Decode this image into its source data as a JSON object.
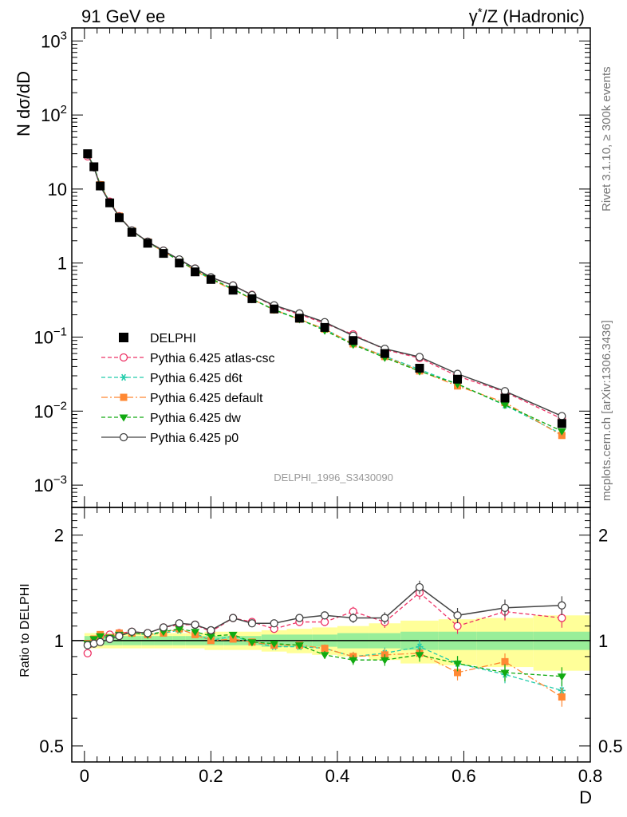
{
  "header": {
    "left": "91 GeV ee",
    "right_prefix": "γ",
    "right_sup": "*",
    "right_suffix": "/Z (Hadronic)"
  },
  "side_text": {
    "top": "Rivet 3.1.10, ≥ 300k events",
    "bottom": "mcplots.cern.ch [arXiv:1306.3436]"
  },
  "watermark": "DELPHI_1996_S3430090",
  "axes": {
    "xlabel": "D",
    "ylabel_main": "N dσ/dD",
    "ylabel_ratio": "Ratio to DELPHI",
    "x_ticks": [
      "0",
      "0.2",
      "0.4",
      "0.6",
      "0.8"
    ],
    "main_ticks": [
      {
        "base": "10",
        "exp": "3"
      },
      {
        "base": "10",
        "exp": "2"
      },
      {
        "base": "10",
        "exp": ""
      },
      {
        "base": "1",
        "exp": ""
      },
      {
        "base": "10",
        "exp": "−1"
      },
      {
        "base": "10",
        "exp": "−2"
      },
      {
        "base": "10",
        "exp": "−3"
      }
    ],
    "ratio_ticks": [
      "2",
      "1",
      "0.5"
    ]
  },
  "legend": [
    {
      "label": "DELPHI"
    },
    {
      "label": "Pythia 6.425 atlas-csc"
    },
    {
      "label": "Pythia 6.425 d6t"
    },
    {
      "label": "Pythia 6.425 default"
    },
    {
      "label": "Pythia 6.425 dw"
    },
    {
      "label": "Pythia 6.425 p0"
    }
  ],
  "chart_data": {
    "type": "line",
    "x_scale": "linear",
    "xlim": [
      -0.02,
      0.8
    ],
    "main": {
      "y_scale": "log",
      "ylim": [
        0.0005,
        1500
      ]
    },
    "ratio": {
      "y_scale": "log",
      "ylim": [
        0.45,
        2.4
      ]
    },
    "x": [
      0.005,
      0.015,
      0.025,
      0.04,
      0.055,
      0.075,
      0.1,
      0.125,
      0.15,
      0.175,
      0.2,
      0.235,
      0.265,
      0.3,
      0.34,
      0.38,
      0.425,
      0.475,
      0.53,
      0.59,
      0.665,
      0.755
    ],
    "x_edges": [
      0.0,
      0.01,
      0.02,
      0.03,
      0.05,
      0.06,
      0.09,
      0.11,
      0.14,
      0.16,
      0.19,
      0.22,
      0.25,
      0.28,
      0.32,
      0.36,
      0.4,
      0.45,
      0.5,
      0.56,
      0.62,
      0.71,
      0.8
    ],
    "band_inner": [
      0.03,
      0.03,
      0.03,
      0.03,
      0.03,
      0.03,
      0.03,
      0.03,
      0.03,
      0.03,
      0.03,
      0.03,
      0.03,
      0.04,
      0.04,
      0.04,
      0.05,
      0.05,
      0.06,
      0.06,
      0.06,
      0.06
    ],
    "band_outer": [
      0.05,
      0.05,
      0.05,
      0.05,
      0.05,
      0.05,
      0.05,
      0.05,
      0.05,
      0.05,
      0.06,
      0.06,
      0.06,
      0.07,
      0.08,
      0.09,
      0.1,
      0.12,
      0.14,
      0.15,
      0.16,
      0.18
    ],
    "data": [
      30,
      20,
      11,
      6.5,
      4.1,
      2.6,
      1.85,
      1.35,
      1.0,
      0.76,
      0.6,
      0.43,
      0.33,
      0.24,
      0.18,
      0.135,
      0.09,
      0.06,
      0.038,
      0.027,
      0.015,
      0.0068
    ],
    "series": [
      {
        "name": "Pythia 6.425 atlas-csc",
        "color": "#ee3366",
        "style": "dash",
        "marker": "circle-open",
        "ratio": [
          0.92,
          0.99,
          1.03,
          1.04,
          1.05,
          1.06,
          1.05,
          1.09,
          1.11,
          1.11,
          1.06,
          1.16,
          1.13,
          1.08,
          1.13,
          1.13,
          1.21,
          1.13,
          1.37,
          1.1,
          1.21,
          1.16
        ]
      },
      {
        "name": "Pythia 6.425 d6t",
        "color": "#22ccaa",
        "style": "dash",
        "marker": "star",
        "ratio": [
          0.97,
          1.01,
          1.03,
          1.02,
          1.04,
          1.05,
          1.04,
          1.05,
          1.07,
          1.05,
          1.0,
          1.03,
          0.99,
          0.96,
          0.96,
          0.95,
          0.9,
          0.92,
          0.96,
          0.86,
          0.8,
          0.72
        ]
      },
      {
        "name": "Pythia 6.425 default",
        "color": "#ff8833",
        "style": "dashdot",
        "marker": "square",
        "ratio": [
          0.98,
          1.01,
          1.04,
          1.02,
          1.05,
          1.05,
          1.04,
          1.05,
          1.08,
          1.04,
          1.0,
          1.01,
          0.99,
          0.97,
          0.97,
          0.95,
          0.9,
          0.91,
          0.92,
          0.81,
          0.87,
          0.69
        ]
      },
      {
        "name": "Pythia 6.425 dw",
        "color": "#11aa11",
        "style": "dash",
        "marker": "triangle-down",
        "ratio": [
          0.98,
          1.01,
          1.03,
          1.02,
          1.04,
          1.05,
          1.04,
          1.06,
          1.08,
          1.06,
          1.03,
          1.04,
          0.99,
          0.98,
          0.97,
          0.91,
          0.88,
          0.88,
          0.91,
          0.86,
          0.81,
          0.79
        ]
      },
      {
        "name": "Pythia 6.425 p0",
        "color": "#444444",
        "style": "solid",
        "marker": "circle-open",
        "ratio": [
          0.97,
          0.98,
          0.99,
          1.01,
          1.03,
          1.06,
          1.05,
          1.09,
          1.12,
          1.11,
          1.07,
          1.16,
          1.12,
          1.12,
          1.16,
          1.18,
          1.16,
          1.16,
          1.42,
          1.18,
          1.24,
          1.26
        ]
      }
    ]
  }
}
